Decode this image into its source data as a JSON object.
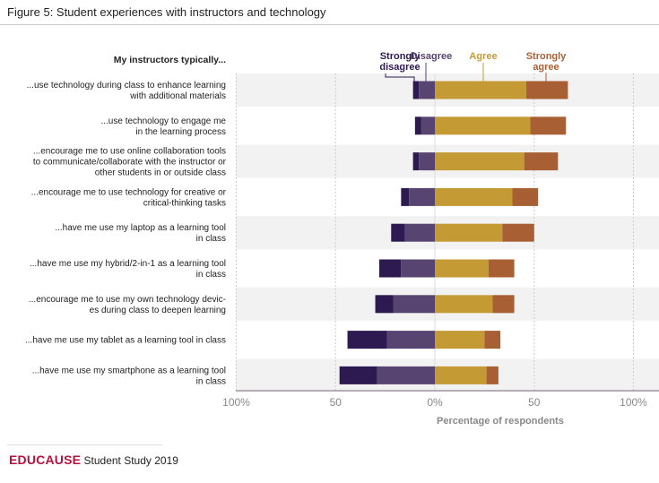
{
  "title": "Figure 5: Student experiences with instructors and technology",
  "footer": {
    "brand": "EDUCAUSE",
    "text": "Student Study 2019"
  },
  "chart_data": {
    "type": "bar",
    "orientation": "horizontal-diverging-stacked",
    "row_header": "My instructors typically...",
    "categories": [
      [
        "...use technology during class to enhance learning",
        "with additional materials"
      ],
      [
        "...use technology to engage me",
        "in the learning process"
      ],
      [
        "...encourage me to use online collaboration tools",
        "to communicate/collaborate with the instructor or",
        "other students in or outside class"
      ],
      [
        "...encourage me to use technology for creative or",
        "critical-thinking tasks"
      ],
      [
        "...have me use my laptop as a learning tool",
        "in class"
      ],
      [
        "...have me use my hybrid/2-in-1 as a learning tool",
        "in class"
      ],
      [
        "...encourage me to use my own technology devic-",
        "es during class to deepen learning"
      ],
      [
        "...have me use my tablet as a learning tool in class"
      ],
      [
        "...have me use my smartphone as a learning tool",
        "in class"
      ]
    ],
    "series": [
      {
        "name": "Strongly disagree",
        "legend_lines": [
          "Strongly",
          "disagree"
        ],
        "color": "#2d1a50",
        "side": "negative",
        "values": [
          3,
          3,
          3,
          4,
          7,
          11,
          9,
          20,
          19
        ]
      },
      {
        "name": "Disagree",
        "legend_lines": [
          "Disagree"
        ],
        "color": "#574470",
        "side": "negative",
        "values": [
          8,
          7,
          8,
          13,
          15,
          17,
          21,
          24,
          29
        ]
      },
      {
        "name": "Agree",
        "legend_lines": [
          "Agree"
        ],
        "color": "#c49a35",
        "side": "positive",
        "values": [
          46,
          48,
          45,
          39,
          34,
          27,
          29,
          25,
          26
        ]
      },
      {
        "name": "Strongly agree",
        "legend_lines": [
          "Strongly",
          "agree"
        ],
        "color": "#a95f34",
        "side": "positive",
        "values": [
          21,
          18,
          17,
          13,
          16,
          13,
          11,
          8,
          6
        ]
      }
    ],
    "xlabel": "Percentage of respondents",
    "xlim": [
      -100,
      100
    ],
    "ticks": [
      {
        "v": -100,
        "label": "100%"
      },
      {
        "v": -50,
        "label": "50"
      },
      {
        "v": 0,
        "label": "0%"
      },
      {
        "v": 50,
        "label": "50"
      },
      {
        "v": 100,
        "label": "100%"
      }
    ],
    "legend_placement": "top",
    "grid": true
  }
}
